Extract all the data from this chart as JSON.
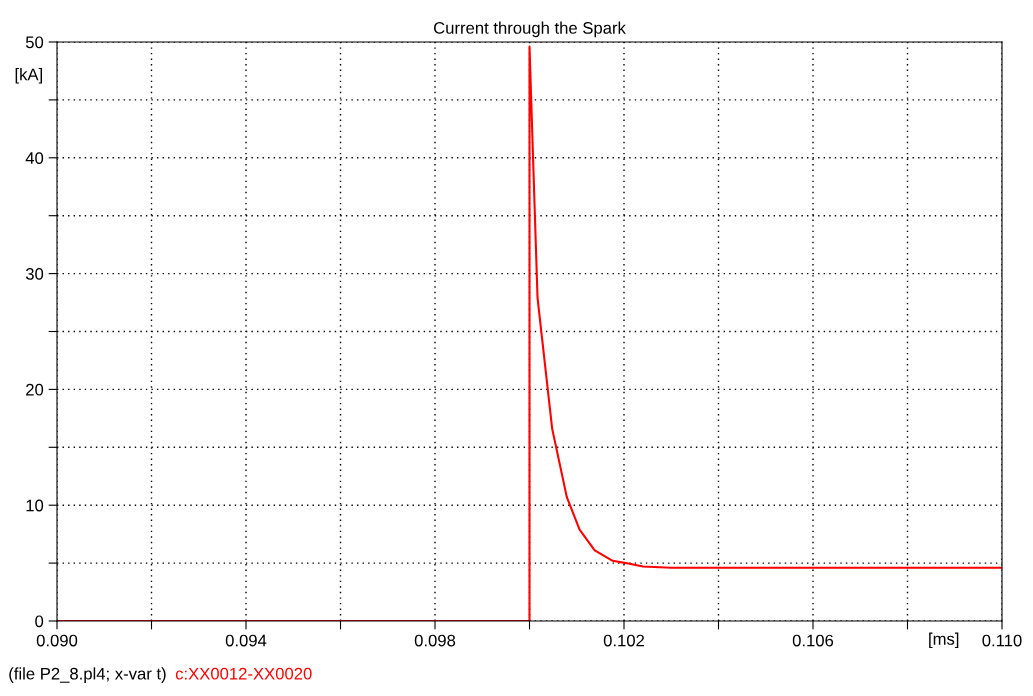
{
  "chart_data": {
    "type": "line",
    "title": "Current through the Spark",
    "xlabel": "[ms]",
    "ylabel": "[kA]",
    "annotations": [
      "(file P2_8.pl4; x-var t)"
    ],
    "x": [
      0.09,
      0.1,
      0.1,
      0.10017,
      0.10048,
      0.10079,
      0.10106,
      0.10138,
      0.10176,
      0.10204,
      0.1024,
      0.103,
      0.11
    ],
    "series": [
      {
        "name": "c:XX0012-XX0020",
        "color": "#ff0000",
        "values": [
          0,
          0,
          49.6,
          27.9,
          16.6,
          10.7,
          7.9,
          6.1,
          5.2,
          5.0,
          4.7,
          4.6,
          4.6
        ]
      }
    ],
    "xlim": [
      0.09,
      0.11
    ],
    "xticks": [
      {
        "value": 0.09,
        "label": "0.090"
      },
      {
        "value": 0.092,
        "label": null
      },
      {
        "value": 0.094,
        "label": "0.094"
      },
      {
        "value": 0.096,
        "label": null
      },
      {
        "value": 0.098,
        "label": "0.098"
      },
      {
        "value": 0.1,
        "label": null
      },
      {
        "value": 0.102,
        "label": "0.102"
      },
      {
        "value": 0.104,
        "label": null
      },
      {
        "value": 0.106,
        "label": "0.106"
      },
      {
        "value": 0.108,
        "label": null
      },
      {
        "value": 0.11,
        "label": "0.110"
      }
    ],
    "ylim": [
      0,
      50
    ],
    "yticks": [
      0,
      {
        "value": 5,
        "label": null
      },
      10,
      {
        "value": 15,
        "label": null
      },
      20,
      {
        "value": 25,
        "label": null
      },
      30,
      {
        "value": 35,
        "label": null
      },
      40,
      {
        "value": 45,
        "label": null
      },
      50
    ],
    "grid": true,
    "line_style": "solid",
    "marker": "none",
    "legend": "bottom left"
  }
}
